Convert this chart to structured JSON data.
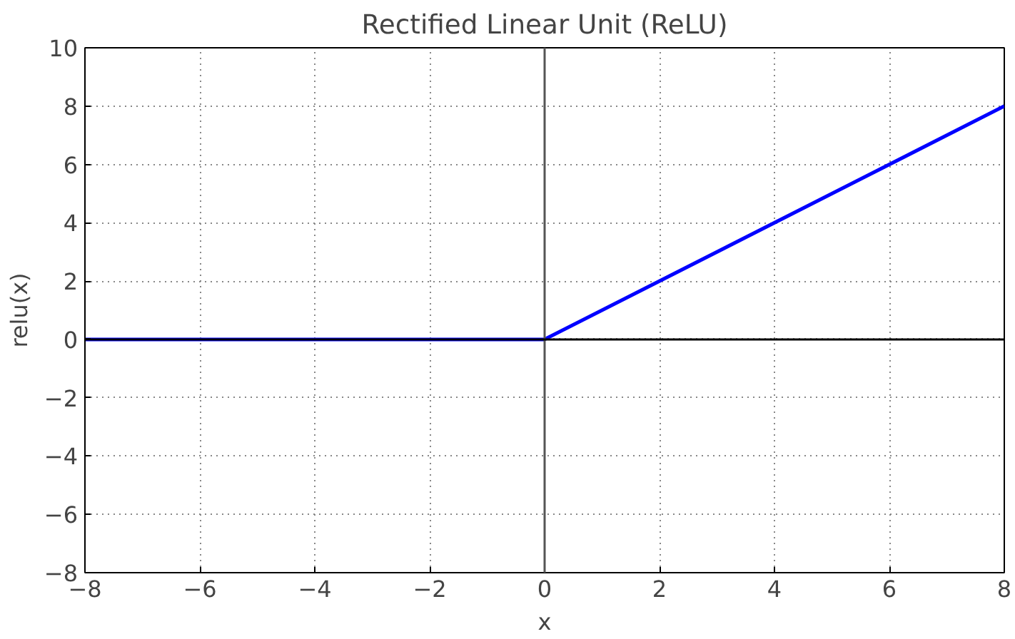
{
  "chart_data": {
    "type": "line",
    "title": "Rectified Linear Unit (ReLU)",
    "xlabel": "x",
    "ylabel": "relu(x)",
    "x": [
      -8,
      0,
      8
    ],
    "series": [
      {
        "color": "#0000ff",
        "values": [
          0,
          0,
          8
        ]
      }
    ],
    "xlim": [
      -8,
      8
    ],
    "ylim": [
      -8,
      10
    ],
    "xticks": [
      {
        "value": -8,
        "label": "−8"
      },
      {
        "value": -6,
        "label": "−6"
      },
      {
        "value": -4,
        "label": "−4"
      },
      {
        "value": -2,
        "label": "−2"
      },
      0,
      2,
      4,
      6,
      8
    ],
    "yticks": [
      {
        "value": -8,
        "label": "−8"
      },
      {
        "value": -6,
        "label": "−6"
      },
      {
        "value": -4,
        "label": "−4"
      },
      {
        "value": -2,
        "label": "−2"
      },
      0,
      2,
      4,
      6,
      8,
      10
    ],
    "grid": true,
    "marker": "none",
    "line_style": "solid",
    "ref_lines": [
      {
        "axis": "x",
        "value": 0,
        "color": "#555555"
      },
      {
        "axis": "y",
        "value": 0,
        "color": "#000000"
      }
    ]
  }
}
